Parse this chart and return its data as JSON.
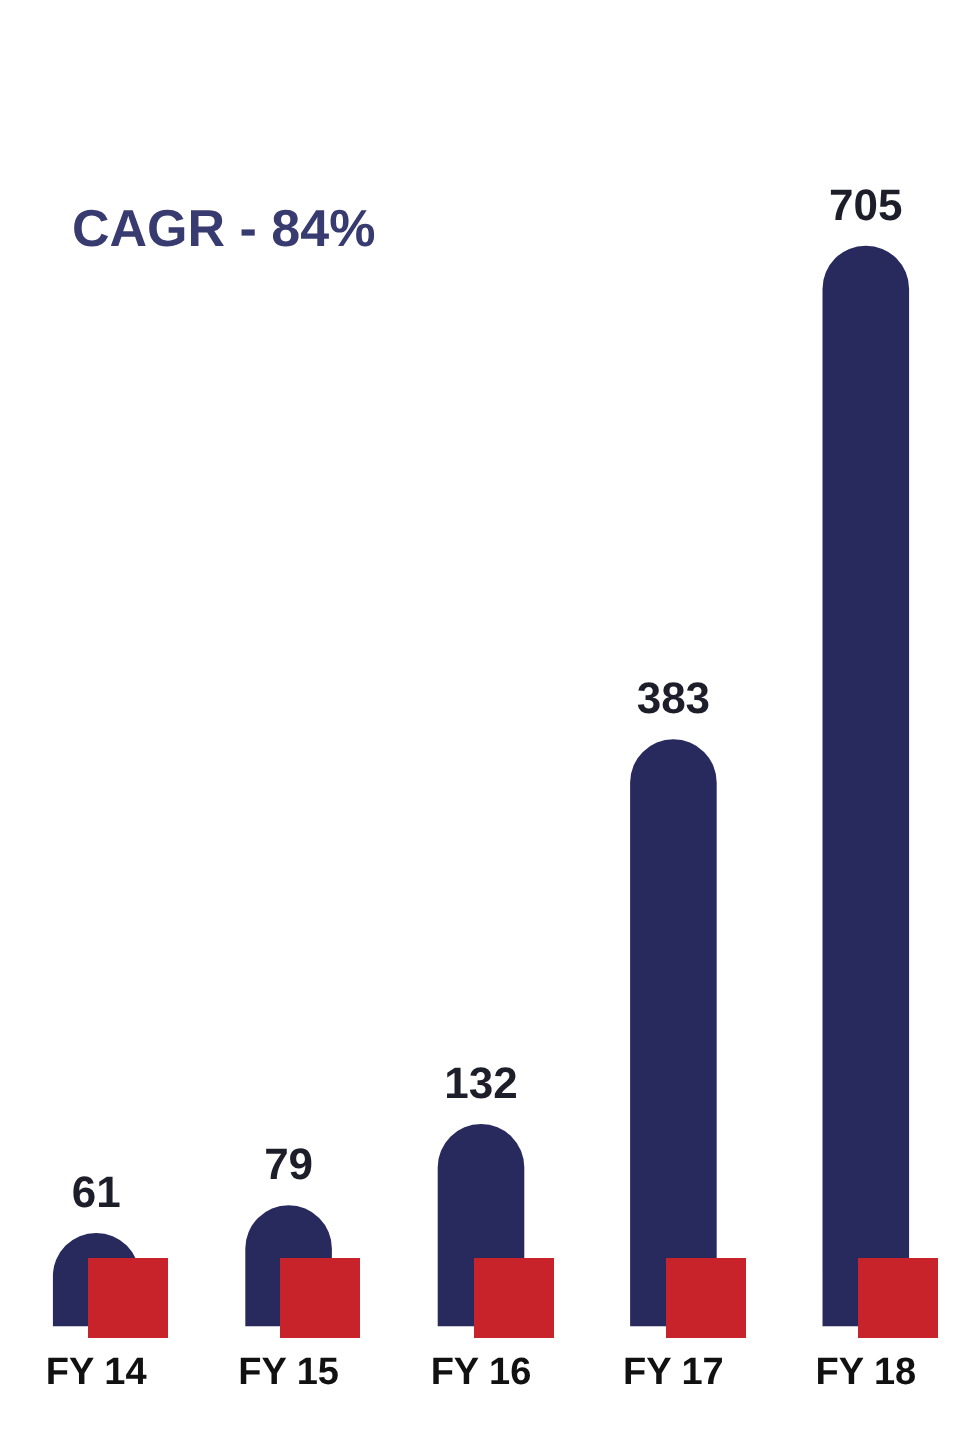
{
  "chart_data": {
    "type": "bar",
    "categories": [
      "FY 14",
      "FY 15",
      "FY 16",
      "FY 17",
      "FY 18"
    ],
    "values": [
      61,
      79,
      132,
      383,
      705
    ],
    "color": "#282a5e",
    "data_labels": true,
    "grid": false,
    "legend": false,
    "annotations": [
      "CAGR - 84%"
    ]
  }
}
